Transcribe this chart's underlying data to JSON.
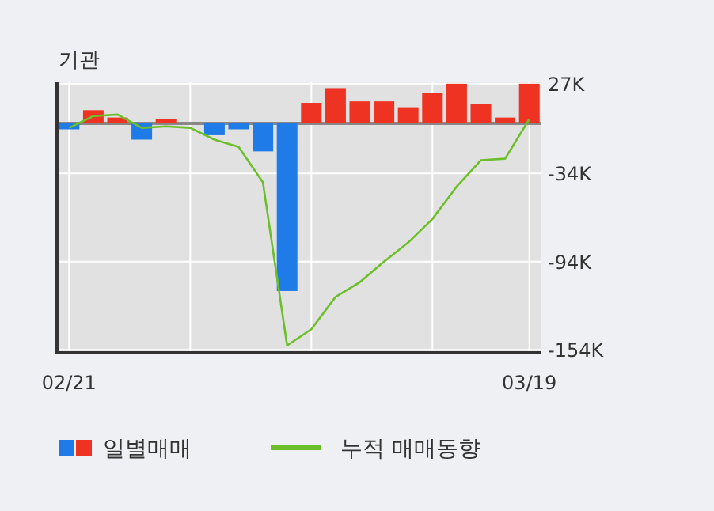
{
  "chart_data": {
    "type": "bar",
    "title": "기관",
    "categories": [
      "02/21",
      null,
      null,
      null,
      null,
      null,
      null,
      null,
      null,
      null,
      null,
      null,
      null,
      null,
      null,
      null,
      null,
      null,
      null,
      "03/19"
    ],
    "series": [
      {
        "name": "일별매매",
        "colors": [
          "#1e7be8",
          "#ee3322",
          "#ee3322",
          "#1e7be8",
          "#ee3322",
          "#ee3322",
          "#1e7be8",
          "#1e7be8",
          "#1e7be8",
          "#1e7be8",
          "#ee3322",
          "#ee3322",
          "#ee3322",
          "#ee3322",
          "#ee3322",
          "#ee3322",
          "#ee3322",
          "#ee3322",
          "#ee3322",
          "#ee3322"
        ],
        "values": [
          -4,
          9,
          4,
          -11,
          3,
          0,
          -8,
          -4,
          -19,
          -114,
          14,
          24,
          15,
          15,
          11,
          21,
          27,
          13,
          4,
          27
        ]
      },
      {
        "type": "line",
        "name": "누적 매매동향",
        "color": "#6cbf2a",
        "values": [
          -3,
          5,
          6,
          -3,
          -2,
          -3,
          -11,
          -16,
          -40,
          -151,
          -140,
          -118,
          -108,
          -94,
          -81,
          -65,
          -43,
          -25,
          -24,
          3
        ]
      }
    ],
    "ylim": [
      -156,
      28
    ],
    "yticks": [
      {
        "value": 27,
        "label": "27K"
      },
      {
        "value": -34,
        "label": "-34K"
      },
      {
        "value": -94,
        "label": "-94K"
      },
      {
        "value": -154,
        "label": "-154K"
      }
    ],
    "grid": true,
    "legend": "bottom"
  }
}
